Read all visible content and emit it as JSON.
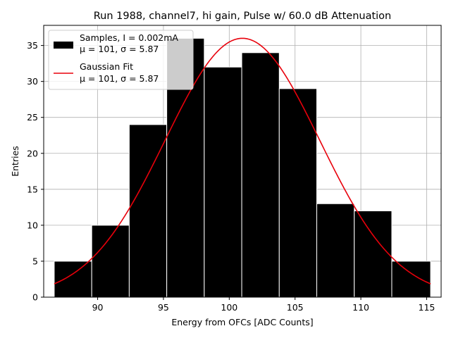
{
  "chart_data": {
    "type": "bar",
    "title": "Run 1988, channel7, hi gain, Pulse w/ 60.0 dB Attenuation",
    "xlabel": "Energy from OFCs [ADC Counts]",
    "ylabel": "Entries",
    "xlim": [
      85.9,
      116.1
    ],
    "ylim": [
      0,
      37.8
    ],
    "xticks": [
      90,
      95,
      100,
      105,
      110,
      115
    ],
    "yticks": [
      0,
      5,
      10,
      15,
      20,
      25,
      30,
      35
    ],
    "grid": true,
    "legend_position": "top-left",
    "bins": [
      {
        "left": 86.7,
        "right": 89.55,
        "count": 5
      },
      {
        "left": 89.55,
        "right": 92.4,
        "count": 10
      },
      {
        "left": 92.4,
        "right": 95.25,
        "count": 24
      },
      {
        "left": 95.25,
        "right": 98.1,
        "count": 36
      },
      {
        "left": 98.1,
        "right": 100.95,
        "count": 32
      },
      {
        "left": 100.95,
        "right": 103.8,
        "count": 34
      },
      {
        "left": 103.8,
        "right": 106.65,
        "count": 29
      },
      {
        "left": 106.65,
        "right": 109.5,
        "count": 13
      },
      {
        "left": 109.5,
        "right": 112.35,
        "count": 12
      },
      {
        "left": 112.35,
        "right": 115.3,
        "count": 5
      }
    ],
    "fit": {
      "type": "gaussian",
      "amplitude": 36,
      "mu": 101,
      "sigma": 5.87,
      "x_range": [
        86.7,
        115.3
      ]
    },
    "series": [
      {
        "name": "Samples, I = 0.002mA",
        "stats": "μ = 101, σ = 5.87",
        "color": "#000000"
      },
      {
        "name": "Gaussian Fit",
        "stats": "μ = 101, σ = 5.87",
        "color": "#e8000b"
      }
    ]
  }
}
